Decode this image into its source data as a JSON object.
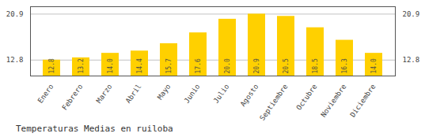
{
  "chart_data": {
    "type": "bar",
    "title": "Temperaturas Medias en ruiloba",
    "categories": [
      "Enero",
      "Febrero",
      "Marzo",
      "Abril",
      "Mayo",
      "Junio",
      "Julio",
      "Agosto",
      "Septiembre",
      "Octubre",
      "Noviembre",
      "Diciembre"
    ],
    "values": [
      12.8,
      13.2,
      14.0,
      14.4,
      15.7,
      17.6,
      20.0,
      20.9,
      20.5,
      18.5,
      16.3,
      14.0
    ],
    "value_labels": [
      "12.8",
      "13.2",
      "14.0",
      "14.4",
      "15.7",
      "17.6",
      "20.0",
      "20.9",
      "20.5",
      "18.5",
      "16.3",
      "14.0"
    ],
    "color": "#FFD000",
    "ylim": [
      10.0,
      22.2
    ],
    "yticks": [
      12.8,
      20.9
    ],
    "grid": true,
    "data_labels": true
  }
}
